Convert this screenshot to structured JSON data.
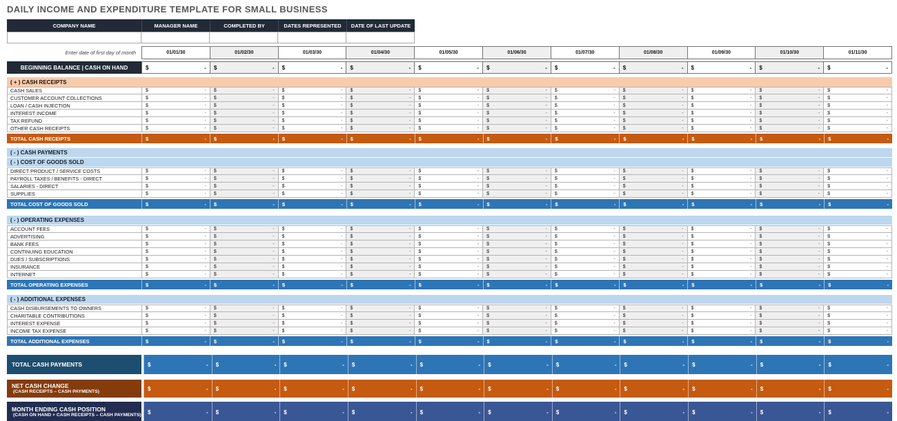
{
  "title": "DAILY INCOME AND EXPENDITURE TEMPLATE FOR SMALL BUSINESS",
  "colors": {
    "header_dark_navy": "#212A36",
    "section_peach": "#F8CBAD",
    "section_light_blue": "#BDD7EE",
    "total_orange": "#C55A11",
    "total_steel_blue": "#2E75B6",
    "payments_label_blue": "#1D4D6F",
    "net_change_label_brown": "#843C0C",
    "month_end_label_navy": "#232C51",
    "month_end_cell_indigo": "#3A5795",
    "alt_column_gray": "#EFEFEF",
    "title_gray": "#595959"
  },
  "cell": {
    "currency": "$",
    "empty": "-"
  },
  "info_table": {
    "headers": [
      "COMPANY NAME",
      "MANAGER NAME",
      "COMPLETED BY",
      "DATES REPRESENTED",
      "DATE OF LAST UPDATE"
    ],
    "values": [
      "",
      "",
      "",
      "",
      ""
    ]
  },
  "date_row": {
    "hint": "Enter date of first day of month",
    "dates": [
      "01/01/30",
      "01/02/30",
      "01/03/30",
      "01/04/30",
      "01/05/30",
      "01/06/30",
      "01/07/30",
      "01/08/30",
      "01/09/30",
      "01/10/30",
      "01/11/30"
    ]
  },
  "beginning_balance": {
    "label": "BEGINNING BALANCE | CASH ON HAND"
  },
  "sections": [
    {
      "name": "cash-receipts",
      "header_style": "peach",
      "headers": [
        "( + )  CASH RECEIPTS"
      ],
      "rows": [
        "CASH SALES",
        "CUSTOMER ACCOUNT COLLECTIONS",
        "LOAN / CASH INJECTION",
        "INTEREST INCOME",
        "TAX REFUND",
        "OTHER CASH RECEIPTS"
      ],
      "total": {
        "label": "TOTAL CASH RECEIPTS",
        "style": "orange"
      }
    },
    {
      "name": "cost-of-goods-sold",
      "header_style": "blue",
      "headers": [
        "( - )  CASH PAYMENTS",
        "( - )  COST OF GOODS SOLD"
      ],
      "rows": [
        "DIRECT PRODUCT / SERVICE COSTS",
        "PAYROLL TAXES / BENEFITS - DIRECT",
        "SALARIES - DIRECT",
        "SUPPLIES"
      ],
      "total": {
        "label": "TOTAL COST OF GOODS SOLD",
        "style": "steel"
      }
    },
    {
      "name": "operating-expenses",
      "header_style": "blue",
      "headers": [
        "( - )  OPERATING EXPENSES"
      ],
      "rows": [
        "ACCOUNT FEES",
        "ADVERTISING",
        "BANK FEES",
        "CONTINUING EDUCATION",
        "DUES / SUBSCRIPTIONS",
        "INSURANCE",
        "INTERNET"
      ],
      "total": {
        "label": "TOTAL OPERATING EXPENSES",
        "style": "steel"
      }
    },
    {
      "name": "additional-expenses",
      "header_style": "blue",
      "headers": [
        "( - )  ADDITIONAL EXPENSES"
      ],
      "rows": [
        "CASH DISBURSEMENTS TO OWNERS",
        "CHARITABLE CONTRIBUTIONS",
        "INTEREST EXPENSE",
        "INCOME TAX EXPENSE"
      ],
      "total": {
        "label": "TOTAL ADDITIONAL EXPENSES",
        "style": "steel"
      }
    }
  ],
  "summary_rows": [
    {
      "name": "total-cash-payments",
      "label": "TOTAL CASH PAYMENTS",
      "sub": "",
      "label_style": "darkblue",
      "cell_style": "steel",
      "row_class": "tcp"
    },
    {
      "name": "net-cash-change",
      "label": "NET CASH CHANGE",
      "sub": "(CASH RECEIPTS – CASH PAYMENTS)",
      "label_style": "darkbrown",
      "cell_style": "orange",
      "row_class": "net"
    },
    {
      "name": "month-ending-cash-position",
      "label": "MONTH ENDING CASH POSITION",
      "sub": "(CASH ON HAND + CASH RECEIPTS – CASH PAYMENTS)",
      "label_style": "darknavy",
      "cell_style": "indigo",
      "row_class": "mep"
    }
  ]
}
